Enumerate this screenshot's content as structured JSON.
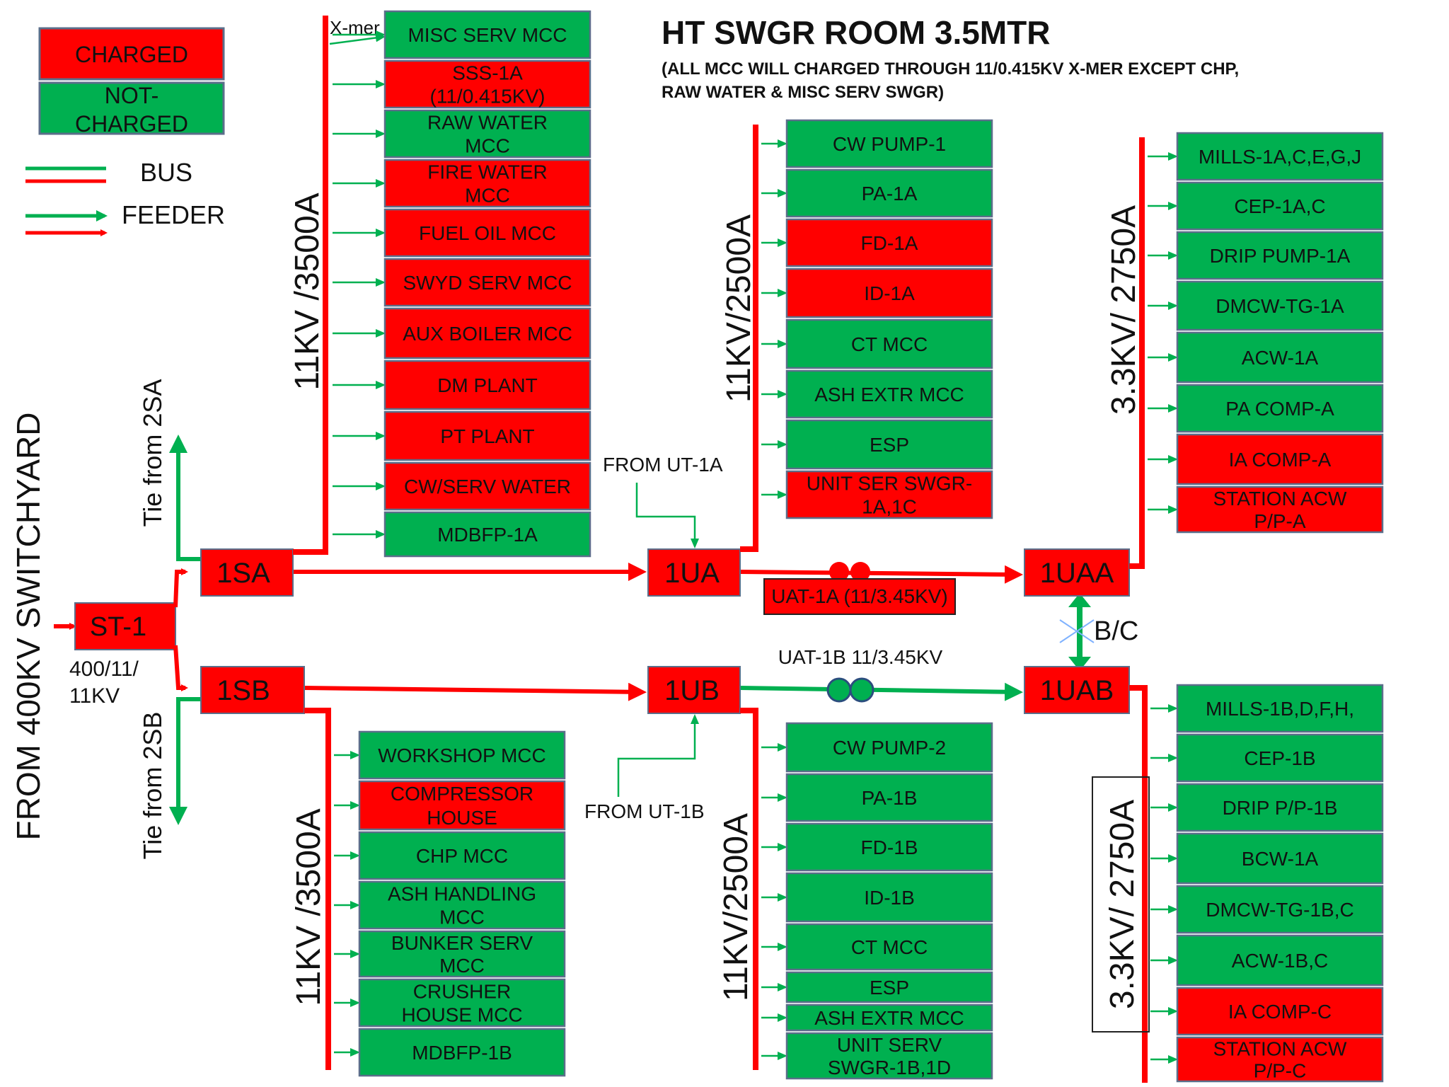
{
  "colors": {
    "charged": "#ff0000",
    "not_charged": "#00b050",
    "box_border": "#5b6e8a",
    "arrow_green": "#00b050",
    "text": "#111111"
  },
  "title": "HT SWGR ROOM 3.5MTR",
  "subtitle": [
    "(ALL MCC WILL CHARGED THROUGH 11/0.415KV X-MER EXCEPT CHP,",
    "RAW WATER & MISC SERV SWGR)"
  ],
  "legend": {
    "charged": "CHARGED",
    "not_charged": [
      "NOT-",
      "CHARGED"
    ],
    "bus": "BUS",
    "feeder": "FEEDER"
  },
  "labels": {
    "switchyard": "FROM 400KV SWITCHYARD",
    "st1_rating": [
      "400/11/",
      "11KV"
    ],
    "tie_2sa": "Tie from 2SA",
    "tie_2sb": "Tie from 2SB",
    "xmer": "X-mer",
    "from_ut1a": "FROM  UT-1A",
    "from_ut1b": "FROM  UT-1B",
    "uat1a": "UAT-1A (11/3.45KV)",
    "uat1b": "UAT-1B 11/3.45KV",
    "bc": "B/C",
    "bus_1sa_rating": "11KV /3500A",
    "bus_1sb_rating": "11KV /3500A",
    "bus_1ua_rating": "11KV/2500A",
    "bus_1ub_rating": "11KV/2500A",
    "bus_1uaa_rating": "3.3KV/ 2750A",
    "bus_1uab_rating": "3.3KV/ 2750A"
  },
  "nodes": {
    "st1": "ST-1",
    "sa1": "1SA",
    "sb1": "1SB",
    "ua1": "1UA",
    "ub1": "1UB",
    "uaa1": "1UAA",
    "uab1": "1UAB"
  },
  "feeders": {
    "sa1": [
      {
        "label": [
          "MISC SERV MCC"
        ],
        "state": "not_charged"
      },
      {
        "label": [
          "SSS-1A",
          "(11/0.415KV)"
        ],
        "state": "charged"
      },
      {
        "label": [
          "RAW WATER",
          "MCC"
        ],
        "state": "not_charged"
      },
      {
        "label": [
          "FIRE WATER",
          "MCC"
        ],
        "state": "charged"
      },
      {
        "label": [
          "FUEL OIL MCC"
        ],
        "state": "charged"
      },
      {
        "label": [
          "SWYD SERV MCC"
        ],
        "state": "charged"
      },
      {
        "label": [
          "AUX BOILER MCC"
        ],
        "state": "charged"
      },
      {
        "label": [
          "DM PLANT"
        ],
        "state": "charged"
      },
      {
        "label": [
          "PT PLANT"
        ],
        "state": "charged"
      },
      {
        "label": [
          "CW/SERV WATER"
        ],
        "state": "charged"
      },
      {
        "label": [
          "MDBFP-1A"
        ],
        "state": "not_charged"
      }
    ],
    "ua1": [
      {
        "label": [
          "CW PUMP-1"
        ],
        "state": "not_charged"
      },
      {
        "label": [
          "PA-1A"
        ],
        "state": "not_charged"
      },
      {
        "label": [
          "FD-1A"
        ],
        "state": "charged"
      },
      {
        "label": [
          "ID-1A"
        ],
        "state": "charged"
      },
      {
        "label": [
          "CT MCC"
        ],
        "state": "not_charged"
      },
      {
        "label": [
          "ASH EXTR MCC"
        ],
        "state": "not_charged"
      },
      {
        "label": [
          "ESP"
        ],
        "state": "not_charged"
      },
      {
        "label": [
          "UNIT SER SWGR-",
          "1A,1C"
        ],
        "state": "charged"
      }
    ],
    "uaa1": [
      {
        "label": [
          "MILLS-1A,C,E,G,J"
        ],
        "state": "not_charged"
      },
      {
        "label": [
          "CEP-1A,C"
        ],
        "state": "not_charged"
      },
      {
        "label": [
          "DRIP PUMP-1A"
        ],
        "state": "not_charged"
      },
      {
        "label": [
          "DMCW-TG-1A"
        ],
        "state": "not_charged"
      },
      {
        "label": [
          "ACW-1A"
        ],
        "state": "not_charged"
      },
      {
        "label": [
          "PA COMP-A"
        ],
        "state": "not_charged"
      },
      {
        "label": [
          "IA COMP-A"
        ],
        "state": "charged"
      },
      {
        "label": [
          "STATION ACW",
          "P/P-A"
        ],
        "state": "charged"
      }
    ],
    "sb1": [
      {
        "label": [
          "WORKSHOP MCC"
        ],
        "state": "not_charged"
      },
      {
        "label": [
          "COMPRESSOR",
          "HOUSE"
        ],
        "state": "charged"
      },
      {
        "label": [
          "CHP MCC"
        ],
        "state": "not_charged"
      },
      {
        "label": [
          "ASH HANDLING",
          "MCC"
        ],
        "state": "not_charged"
      },
      {
        "label": [
          "BUNKER SERV",
          "MCC"
        ],
        "state": "not_charged"
      },
      {
        "label": [
          "CRUSHER",
          "HOUSE MCC"
        ],
        "state": "not_charged"
      },
      {
        "label": [
          "MDBFP-1B"
        ],
        "state": "not_charged"
      }
    ],
    "ub1": [
      {
        "label": [
          "CW PUMP-2"
        ],
        "state": "not_charged"
      },
      {
        "label": [
          "PA-1B"
        ],
        "state": "not_charged"
      },
      {
        "label": [
          "FD-1B"
        ],
        "state": "not_charged"
      },
      {
        "label": [
          "ID-1B"
        ],
        "state": "not_charged"
      },
      {
        "label": [
          "CT MCC"
        ],
        "state": "not_charged"
      },
      {
        "label": [
          "ESP"
        ],
        "state": "not_charged"
      },
      {
        "label": [
          "ASH EXTR MCC"
        ],
        "state": "not_charged"
      },
      {
        "label": [
          "UNIT SERV",
          "SWGR-1B,1D"
        ],
        "state": "not_charged"
      }
    ],
    "uab1": [
      {
        "label": [
          "MILLS-1B,D,F,H,"
        ],
        "state": "not_charged"
      },
      {
        "label": [
          "CEP-1B"
        ],
        "state": "not_charged"
      },
      {
        "label": [
          "DRIP P/P-1B"
        ],
        "state": "not_charged"
      },
      {
        "label": [
          "BCW-1A"
        ],
        "state": "not_charged"
      },
      {
        "label": [
          "DMCW-TG-1B,C"
        ],
        "state": "not_charged"
      },
      {
        "label": [
          "ACW-1B,C"
        ],
        "state": "not_charged"
      },
      {
        "label": [
          "IA COMP-C"
        ],
        "state": "charged"
      },
      {
        "label": [
          "STATION ACW",
          "P/P-C"
        ],
        "state": "charged"
      }
    ]
  }
}
